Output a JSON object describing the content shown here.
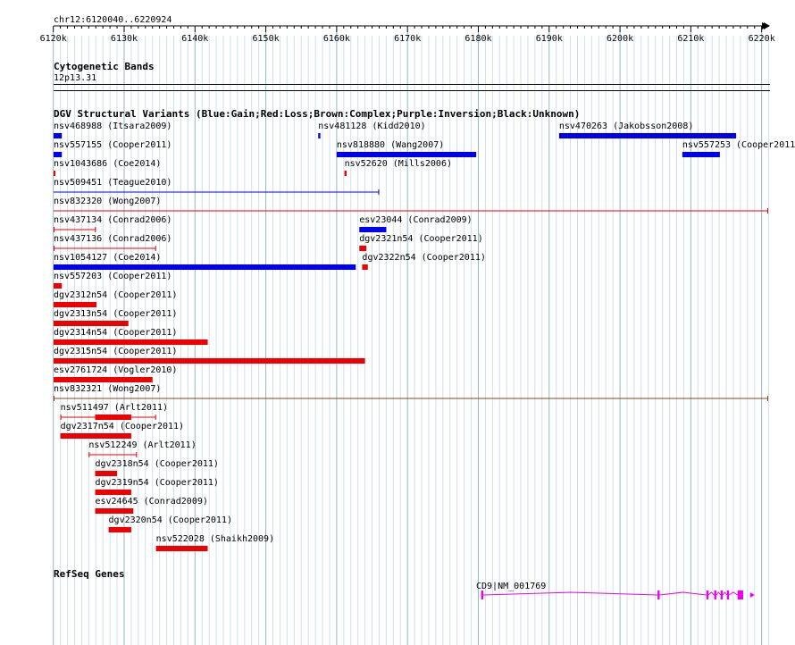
{
  "region": {
    "label": "chr12:6120040..6220924",
    "start": 6120040,
    "end": 6220924
  },
  "ruler": {
    "ticks": [
      {
        "pos": 6120000,
        "label": "6120k"
      },
      {
        "pos": 6130000,
        "label": "6130k"
      },
      {
        "pos": 6140000,
        "label": "6140k"
      },
      {
        "pos": 6150000,
        "label": "6150k"
      },
      {
        "pos": 6160000,
        "label": "6160k"
      },
      {
        "pos": 6170000,
        "label": "6170k"
      },
      {
        "pos": 6180000,
        "label": "6180k"
      },
      {
        "pos": 6190000,
        "label": "6190k"
      },
      {
        "pos": 6200000,
        "label": "6200k"
      },
      {
        "pos": 6210000,
        "label": "6210k"
      },
      {
        "pos": 6220000,
        "label": "6220k"
      }
    ]
  },
  "cytoband": {
    "title": "Cytogenetic Bands",
    "band": "12p13.31"
  },
  "dgv": {
    "title": "DGV Structural Variants (Blue:Gain;Red:Loss;Brown:Complex;Purple:Inversion;Black:Unknown)",
    "colors": {
      "gain": "#0000ee",
      "loss": "#ee0000",
      "complex": "#8b4513"
    },
    "features": [
      {
        "id": "nsv468988",
        "study": "(Itsara2009)",
        "type": "gain",
        "style": "bar",
        "start": 6120040,
        "end": 6121200,
        "row": 0
      },
      {
        "id": "nsv481128",
        "study": "(Kidd2010)",
        "type": "gain",
        "style": "bar",
        "start": 6157400,
        "end": 6157700,
        "row": 0
      },
      {
        "id": "nsv470263",
        "study": "(Jakobsson2008)",
        "type": "gain",
        "style": "bar",
        "start": 6191400,
        "end": 6216400,
        "row": 0
      },
      {
        "id": "nsv557155",
        "study": "(Cooper2011)",
        "type": "gain",
        "style": "bar",
        "start": 6120040,
        "end": 6121200,
        "row": 1
      },
      {
        "id": "nsv818880",
        "study": "(Wang2007)",
        "type": "gain",
        "style": "bar",
        "start": 6160000,
        "end": 6179700,
        "row": 1
      },
      {
        "id": "nsv557253",
        "study": "(Cooper2011)",
        "type": "gain",
        "style": "bar",
        "start": 6208800,
        "end": 6214100,
        "row": 1
      },
      {
        "id": "nsv1043686",
        "study": "(Coe2014)",
        "type": "loss",
        "style": "bar",
        "start": 6120040,
        "end": 6120300,
        "row": 2
      },
      {
        "id": "nsv52620",
        "study": "(Mills2006)",
        "type": "loss",
        "style": "bar",
        "start": 6161100,
        "end": 6161400,
        "row": 2
      },
      {
        "id": "nsv509451",
        "study": "(Teague2010)",
        "type": "gain",
        "style": "line",
        "start": 6120040,
        "end": 6166000,
        "row": 3
      },
      {
        "id": "nsv832320",
        "study": "(Wong2007)",
        "type": "loss",
        "style": "line",
        "start": 6120040,
        "end": 6220924,
        "row": 4
      },
      {
        "id": "nsv437134",
        "study": "(Conrad2006)",
        "type": "loss",
        "style": "range",
        "start": 6120040,
        "end": 6126000,
        "row": 5
      },
      {
        "id": "esv23044",
        "study": "(Conrad2009)",
        "type": "gain",
        "style": "bar",
        "start": 6163200,
        "end": 6167000,
        "row": 5
      },
      {
        "id": "nsv437136",
        "study": "(Conrad2006)",
        "type": "loss",
        "style": "range",
        "start": 6120040,
        "end": 6134500,
        "row": 6
      },
      {
        "id": "dgv2321n54",
        "study": "(Cooper2011)",
        "type": "loss",
        "style": "bar",
        "start": 6163200,
        "end": 6164200,
        "row": 6
      },
      {
        "id": "nsv1054127",
        "study": "(Coe2014)",
        "type": "gain",
        "style": "bar",
        "start": 6120040,
        "end": 6162700,
        "row": 7
      },
      {
        "id": "dgv2322n54",
        "study": "(Cooper2011)",
        "type": "loss",
        "style": "bar",
        "start": 6163600,
        "end": 6164400,
        "row": 7
      },
      {
        "id": "nsv557203",
        "study": "(Cooper2011)",
        "type": "loss",
        "style": "bar",
        "start": 6120040,
        "end": 6121200,
        "row": 8
      },
      {
        "id": "dgv2312n54",
        "study": "(Cooper2011)",
        "type": "loss",
        "style": "bar",
        "start": 6120040,
        "end": 6126100,
        "row": 9
      },
      {
        "id": "dgv2313n54",
        "study": "(Cooper2011)",
        "type": "loss",
        "style": "bar",
        "start": 6120040,
        "end": 6130600,
        "row": 10
      },
      {
        "id": "dgv2314n54",
        "study": "(Cooper2011)",
        "type": "loss",
        "style": "bar",
        "start": 6120040,
        "end": 6141800,
        "row": 11
      },
      {
        "id": "dgv2315n54",
        "study": "(Cooper2011)",
        "type": "loss",
        "style": "bar",
        "start": 6120040,
        "end": 6164000,
        "row": 12
      },
      {
        "id": "esv2761724",
        "study": "(Vogler2010)",
        "type": "loss",
        "style": "bar",
        "start": 6120040,
        "end": 6134000,
        "row": 13
      },
      {
        "id": "nsv832321",
        "study": "(Wong2007)",
        "type": "complex",
        "style": "range",
        "start": 6120040,
        "end": 6220924,
        "row": 14
      },
      {
        "id": "nsv511497",
        "study": "(Arlt2011)",
        "type": "loss",
        "style": "rangebar",
        "start": 6121000,
        "end": 6134500,
        "thickStart": 6125900,
        "thickEnd": 6131000,
        "row": 15
      },
      {
        "id": "dgv2317n54",
        "study": "(Cooper2011)",
        "type": "loss",
        "style": "bar",
        "start": 6121000,
        "end": 6131000,
        "row": 16
      },
      {
        "id": "nsv512249",
        "study": "(Arlt2011)",
        "type": "loss",
        "style": "range",
        "start": 6125000,
        "end": 6131800,
        "row": 17
      },
      {
        "id": "dgv2318n54",
        "study": "(Cooper2011)",
        "type": "loss",
        "style": "bar",
        "start": 6125900,
        "end": 6129000,
        "row": 18
      },
      {
        "id": "dgv2319n54",
        "study": "(Cooper2011)",
        "type": "loss",
        "style": "bar",
        "start": 6125900,
        "end": 6131000,
        "row": 19
      },
      {
        "id": "esv24645",
        "study": "(Conrad2009)",
        "type": "loss",
        "style": "bar",
        "start": 6125900,
        "end": 6131300,
        "row": 20
      },
      {
        "id": "dgv2320n54",
        "study": "(Cooper2011)",
        "type": "loss",
        "style": "bar",
        "start": 6127800,
        "end": 6131000,
        "row": 21
      },
      {
        "id": "nsv522028",
        "study": "(Shaikh2009)",
        "type": "loss",
        "style": "bar",
        "start": 6134500,
        "end": 6141800,
        "row": 22
      }
    ]
  },
  "refseq": {
    "title": "RefSeq Genes",
    "gene_label": "CD9|NM_001769",
    "color": "#ee00ee",
    "start": 6180400,
    "end": 6219000,
    "exons": [
      [
        6180400,
        6180700
      ],
      [
        6205300,
        6205600
      ],
      [
        6212200,
        6212500
      ],
      [
        6213300,
        6213600
      ],
      [
        6214200,
        6214500
      ],
      [
        6215100,
        6215400
      ],
      [
        6216600,
        6217400
      ]
    ]
  }
}
